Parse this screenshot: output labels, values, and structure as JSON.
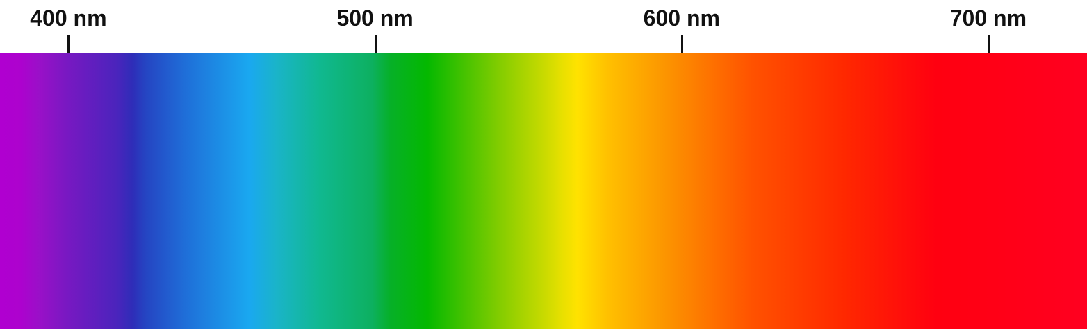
{
  "spectrum": {
    "unit": "nm",
    "axis_min_nm": 377.7,
    "axis_max_nm": 732.2,
    "ticks": [
      {
        "value": 400,
        "label": "400 nm"
      },
      {
        "value": 500,
        "label": "500 nm"
      },
      {
        "value": 600,
        "label": "600 nm"
      },
      {
        "value": 700,
        "label": "700 nm"
      }
    ],
    "color_stops": [
      {
        "nm": 377.7,
        "color": "#b000d0"
      },
      {
        "nm": 384.5,
        "color": "#ad02ce"
      },
      {
        "nm": 390.5,
        "color": "#9a10c8"
      },
      {
        "nm": 399.0,
        "color": "#7a18c2"
      },
      {
        "nm": 416.0,
        "color": "#4a24bc"
      },
      {
        "nm": 421.0,
        "color": "#2e2db8"
      },
      {
        "nm": 425.0,
        "color": "#2544c2"
      },
      {
        "nm": 438.0,
        "color": "#1f6ed8"
      },
      {
        "nm": 459.0,
        "color": "#1aa8f0"
      },
      {
        "nm": 468.0,
        "color": "#1ab4c8"
      },
      {
        "nm": 482.0,
        "color": "#10b890"
      },
      {
        "nm": 499.0,
        "color": "#0db060"
      },
      {
        "nm": 505.0,
        "color": "#06b028"
      },
      {
        "nm": 517.0,
        "color": "#04b800"
      },
      {
        "nm": 540.0,
        "color": "#80cc00"
      },
      {
        "nm": 555.0,
        "color": "#c8da00"
      },
      {
        "nm": 561.0,
        "color": "#e8e000"
      },
      {
        "nm": 566.0,
        "color": "#ffe200"
      },
      {
        "nm": 576.0,
        "color": "#ffc000"
      },
      {
        "nm": 595.0,
        "color": "#fc9400"
      },
      {
        "nm": 623.0,
        "color": "#ff5200"
      },
      {
        "nm": 653.0,
        "color": "#ff2800"
      },
      {
        "nm": 683.0,
        "color": "#ff0010"
      },
      {
        "nm": 732.2,
        "color": "#ff0020"
      }
    ]
  }
}
